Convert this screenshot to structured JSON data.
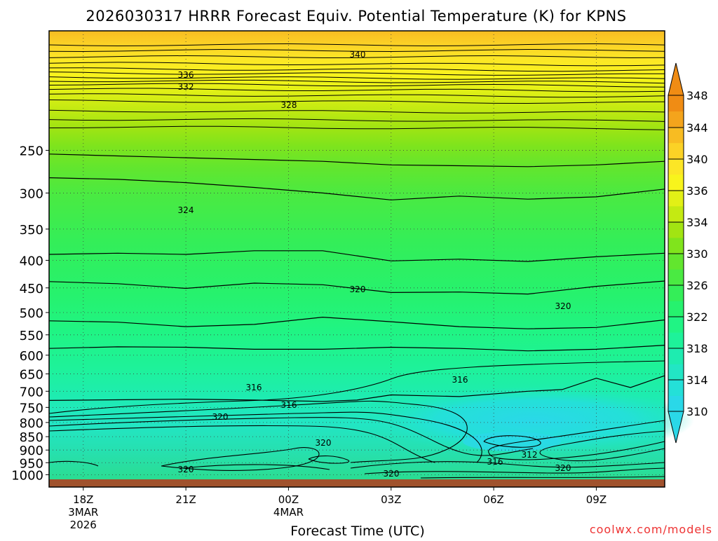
{
  "chart_data": {
    "type": "heatmap",
    "title": "2026030317 HRRR Forecast Equiv. Potential Temperature (K) for KPNS",
    "xlabel": "Forecast Time (UTC)",
    "ylabel": "",
    "credit": "coolwx.com/models",
    "x_ticks": [
      {
        "label": "18Z",
        "date": "3MAR",
        "year": "2026",
        "hour": 0
      },
      {
        "label": "21Z",
        "date": "",
        "year": "",
        "hour": 3
      },
      {
        "label": "00Z",
        "date": "4MAR",
        "year": "",
        "hour": 6
      },
      {
        "label": "03Z",
        "date": "",
        "year": "",
        "hour": 9
      },
      {
        "label": "06Z",
        "date": "",
        "year": "",
        "hour": 12
      },
      {
        "label": "09Z",
        "date": "",
        "year": "",
        "hour": 15
      }
    ],
    "xlim": [
      -1,
      17
    ],
    "y_ticks": [
      250,
      300,
      350,
      400,
      450,
      500,
      550,
      600,
      650,
      700,
      750,
      800,
      850,
      900,
      950,
      1000
    ],
    "ylim": [
      150,
      1020
    ],
    "yscale": "log",
    "y_inverted": true,
    "grid": "dotted",
    "colorbar": {
      "placement": "right",
      "levels": [
        310,
        312,
        314,
        316,
        318,
        320,
        322,
        324,
        326,
        328,
        330,
        332,
        334,
        336,
        338,
        340,
        342,
        344,
        346,
        348
      ],
      "labels": [
        310,
        314,
        318,
        322,
        326,
        330,
        334,
        336,
        340,
        344,
        348
      ],
      "colors": [
        "#2ad8e8",
        "#24e0d8",
        "#22e6c4",
        "#1eecb0",
        "#1ef29a",
        "#20f484",
        "#26f26e",
        "#34ee58",
        "#4aea42",
        "#62e62e",
        "#80e41c",
        "#a2e412",
        "#c4ea12",
        "#e2f016",
        "#f8f41c",
        "#fce626",
        "#fbd226",
        "#f8bc22",
        "#f4a41c",
        "#f08c14"
      ]
    },
    "contours": [
      {
        "label": "316",
        "points": [
          [
            -1,
            728
          ],
          [
            1,
            726
          ],
          [
            3,
            724
          ],
          [
            5,
            727
          ],
          [
            7,
            731
          ],
          [
            8,
            727
          ],
          [
            9,
            711
          ],
          [
            11,
            716
          ],
          [
            13,
            700
          ],
          [
            14,
            695
          ],
          [
            15,
            662
          ],
          [
            16,
            689
          ],
          [
            17,
            655
          ]
        ]
      },
      {
        "label": "320",
        "points": [
          [
            -1,
            518
          ],
          [
            1,
            521
          ],
          [
            3,
            531
          ],
          [
            5,
            526
          ],
          [
            7,
            510
          ],
          [
            9,
            520
          ],
          [
            11,
            531
          ],
          [
            13,
            536
          ],
          [
            15,
            533
          ],
          [
            17,
            516
          ]
        ]
      },
      {
        "label": "320",
        "points": [
          [
            -1,
            583
          ],
          [
            1,
            579
          ],
          [
            3,
            580
          ],
          [
            5,
            585
          ],
          [
            7,
            585
          ],
          [
            9,
            580
          ],
          [
            11,
            583
          ],
          [
            13,
            589
          ],
          [
            15,
            585
          ],
          [
            17,
            575
          ]
        ]
      },
      {
        "label": "324",
        "points": [
          [
            -1,
            438
          ],
          [
            1,
            442
          ],
          [
            3,
            451
          ],
          [
            5,
            441
          ],
          [
            7,
            444
          ],
          [
            9,
            459
          ],
          [
            11,
            458
          ],
          [
            13,
            462
          ],
          [
            15,
            447
          ],
          [
            17,
            437
          ]
        ]
      },
      {
        "label": "324",
        "points": [
          [
            -1,
            390
          ],
          [
            1,
            388
          ],
          [
            3,
            390
          ],
          [
            5,
            384
          ],
          [
            7,
            384
          ],
          [
            9,
            401
          ],
          [
            11,
            398
          ],
          [
            13,
            402
          ],
          [
            15,
            394
          ],
          [
            17,
            388
          ]
        ]
      },
      {
        "label": "326",
        "points": [
          [
            -1,
            281
          ],
          [
            1,
            283
          ],
          [
            3,
            287
          ],
          [
            5,
            293
          ],
          [
            7,
            300
          ],
          [
            9,
            309
          ],
          [
            11,
            304
          ],
          [
            13,
            308
          ],
          [
            15,
            305
          ],
          [
            17,
            295
          ]
        ]
      },
      {
        "label": "328",
        "points": [
          [
            -1,
            254
          ],
          [
            1,
            256
          ],
          [
            3,
            258
          ],
          [
            5,
            260
          ],
          [
            7,
            262
          ],
          [
            9,
            266
          ],
          [
            11,
            267
          ],
          [
            13,
            268
          ],
          [
            15,
            266
          ],
          [
            17,
            262
          ]
        ]
      }
    ],
    "label_values": [
      "340",
      "336",
      "332",
      "328",
      "324",
      "320",
      "320",
      "316",
      "316",
      "316",
      "320",
      "320",
      "320",
      "320",
      "312",
      "316",
      "320",
      "320"
    ]
  }
}
